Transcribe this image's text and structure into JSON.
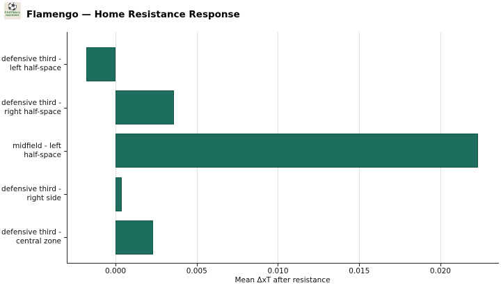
{
  "logo": {
    "line1": "FOOTBALL",
    "line2": "HACKING",
    "ball_icon": "⚽"
  },
  "chart_data": {
    "type": "bar",
    "orientation": "horizontal",
    "title": "Flamengo — Home Resistance Response",
    "xlabel": "Mean ΔxT after resistance",
    "categories": [
      [
        "defensive third -",
        "left half-space"
      ],
      [
        "defensive third -",
        "right half-space"
      ],
      [
        "midfield - left",
        "half-space"
      ],
      [
        "defensive third -",
        "right side"
      ],
      [
        "defensive third -",
        "central zone"
      ]
    ],
    "values": [
      -0.0018,
      0.0036,
      0.0223,
      0.0004,
      0.0023
    ],
    "xlim": [
      -0.003,
      0.0236
    ],
    "xticks": [
      0,
      0.005,
      0.01,
      0.015,
      0.02
    ],
    "xtick_labels": [
      "0.000",
      "0.005",
      "0.010",
      "0.015",
      "0.020"
    ],
    "grid": true,
    "legend": null,
    "colors": {
      "bar": "#1d6e5f",
      "bar_edge": "#14584a",
      "grid": "#e3e3e3",
      "spine": "#262626",
      "text": "#111111"
    }
  }
}
